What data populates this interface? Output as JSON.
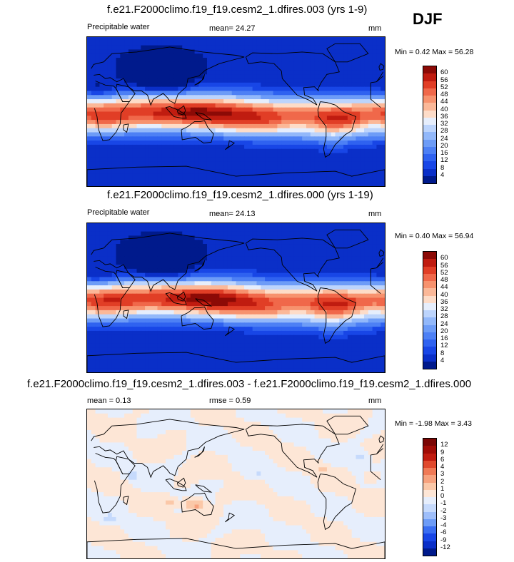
{
  "season": "DJF",
  "panels": [
    {
      "id": "panel1",
      "title": "f.e21.F2000climo.f19_f19.cesm2_1.dfires.003 (yrs 1-9)",
      "left_label": "Precipitable water",
      "center_label": "mean=  24.27",
      "units": "mm",
      "minmax": "Min =  0.42 Max =  56.28",
      "kind": "field"
    },
    {
      "id": "panel2",
      "title": "f.e21.F2000climo.f19_f19.cesm2_1.dfires.000 (yrs 1-19)",
      "left_label": "Precipitable water",
      "center_label": "mean=  24.13",
      "units": "mm",
      "minmax": "Min =  0.40 Max =  56.94",
      "kind": "field"
    },
    {
      "id": "panel3",
      "title": "f.e21.F2000climo.f19_f19.cesm2_1.dfires.003 - f.e21.F2000climo.f19_f19.cesm2_1.dfires.000",
      "left_label": "mean =   0.13",
      "center_label": "rmse =   0.59",
      "units": "mm",
      "minmax": "Min = -1.98 Max =  3.43",
      "kind": "diff"
    }
  ],
  "chart_data": [
    {
      "type": "heatmap",
      "title": "f.e21.F2000climo.f19_f19.cesm2_1.dfires.003 (yrs 1-9)",
      "variable": "Precipitable water",
      "units": "mm",
      "mean": 24.27,
      "min": 0.42,
      "max": 56.28,
      "levels": [
        4,
        8,
        12,
        16,
        20,
        24,
        28,
        32,
        36,
        40,
        44,
        48,
        52,
        56,
        60
      ],
      "colors": [
        "#001a8c",
        "#0a2fc8",
        "#1846e6",
        "#2f62f0",
        "#4d80f5",
        "#6d9cf7",
        "#92b8fa",
        "#bcd4fc",
        "#e6eefc",
        "#fddcc8",
        "#fbb898",
        "#f7926e",
        "#f0684a",
        "#e13e26",
        "#c01c10",
        "#8c0a06"
      ]
    },
    {
      "type": "heatmap",
      "title": "f.e21.F2000climo.f19_f19.cesm2_1.dfires.000 (yrs 1-19)",
      "variable": "Precipitable water",
      "units": "mm",
      "mean": 24.13,
      "min": 0.4,
      "max": 56.94,
      "levels": [
        4,
        8,
        12,
        16,
        20,
        24,
        28,
        32,
        36,
        40,
        44,
        48,
        52,
        56,
        60
      ],
      "colors": [
        "#001a8c",
        "#0a2fc8",
        "#1846e6",
        "#2f62f0",
        "#4d80f5",
        "#6d9cf7",
        "#92b8fa",
        "#bcd4fc",
        "#e6eefc",
        "#fddcc8",
        "#fbb898",
        "#f7926e",
        "#f0684a",
        "#e13e26",
        "#c01c10",
        "#8c0a06"
      ]
    },
    {
      "type": "heatmap",
      "title": "f.e21.F2000climo.f19_f19.cesm2_1.dfires.003 - f.e21.F2000climo.f19_f19.cesm2_1.dfires.000",
      "units": "mm",
      "mean": 0.13,
      "rmse": 0.59,
      "min": -1.98,
      "max": 3.43,
      "levels": [
        -12,
        -9,
        -6,
        -4,
        -3,
        -2,
        -1,
        0,
        1,
        2,
        3,
        4,
        6,
        9,
        12
      ],
      "colors": [
        "#001a8c",
        "#0a2fc8",
        "#1846e6",
        "#3a6ef2",
        "#6d9cf7",
        "#9ebefa",
        "#c6dafc",
        "#e6eefc",
        "#fde6d6",
        "#fbc8a8",
        "#f7a27e",
        "#f07a56",
        "#e04a2e",
        "#c01c10",
        "#a00c06",
        "#7a0604"
      ]
    }
  ]
}
